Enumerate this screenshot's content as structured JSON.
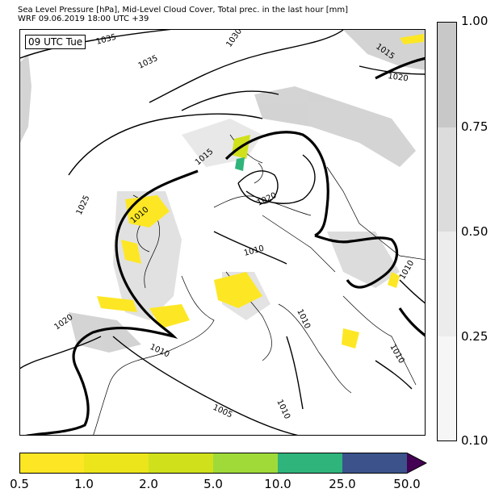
{
  "header": {
    "line1": "Sea Level Pressure [hPa], Mid-Level Cloud Cover, Total prec. in the last hour [mm]",
    "line2": "WRF 09.06.2019 18:00 UTC +39"
  },
  "map": {
    "time_label": "09 UTC Tue",
    "isobar_labels": [
      "1035",
      "1035",
      "1030",
      "1015",
      "1020",
      "1025",
      "1015",
      "1010",
      "1020",
      "1010",
      "1020",
      "1010",
      "1010",
      "1005",
      "1010",
      "1010",
      "1010"
    ]
  },
  "cloud_colorbar": {
    "ticks": [
      "1.00",
      "0.75",
      "0.50",
      "0.25",
      "0.10"
    ],
    "colors": [
      "#c8c8c8",
      "#dcdcdc",
      "#ececec",
      "#f6f6f6"
    ]
  },
  "precip_colorbar": {
    "ticks": [
      "0.5",
      "1.0",
      "2.0",
      "5.0",
      "10.0",
      "25.0",
      "50.0"
    ],
    "colors": [
      "#fde725",
      "#ece51b",
      "#d0e11c",
      "#a0da39",
      "#2fb47c",
      "#3b528b",
      "#440154"
    ]
  }
}
